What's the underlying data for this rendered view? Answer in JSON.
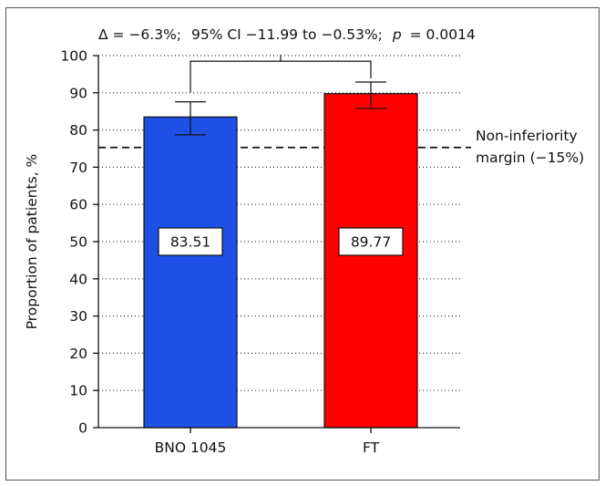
{
  "chart_data": {
    "type": "bar",
    "title": {
      "delta": "Δ = −6.3%;",
      "ci": "95% CI −11.99 to −0.53%;",
      "p_symbol": "p",
      "p_value": "= 0.0014"
    },
    "ylabel": "Proportion of patients, %",
    "xlabel": "",
    "ylim": [
      0,
      100
    ],
    "yticks": [
      0,
      10,
      20,
      30,
      40,
      50,
      60,
      70,
      80,
      90,
      100
    ],
    "grid": "horizontal dotted",
    "categories": [
      "BNO 1045",
      "FT"
    ],
    "values": [
      83.51,
      89.77
    ],
    "value_labels": [
      "83.51",
      "89.77"
    ],
    "error_bars": [
      {
        "low": 78.7,
        "high": 87.6
      },
      {
        "low": 85.8,
        "high": 92.9
      }
    ],
    "bar_colors": [
      "#1e50e6",
      "#ff0000"
    ],
    "reference_line": {
      "value": 75.3,
      "style": "dashed",
      "label_line1": "Non-inferiority",
      "label_line2": "margin (−15%)"
    },
    "significance_bracket": {
      "from": 0,
      "to": 1,
      "top": 98.5
    }
  }
}
